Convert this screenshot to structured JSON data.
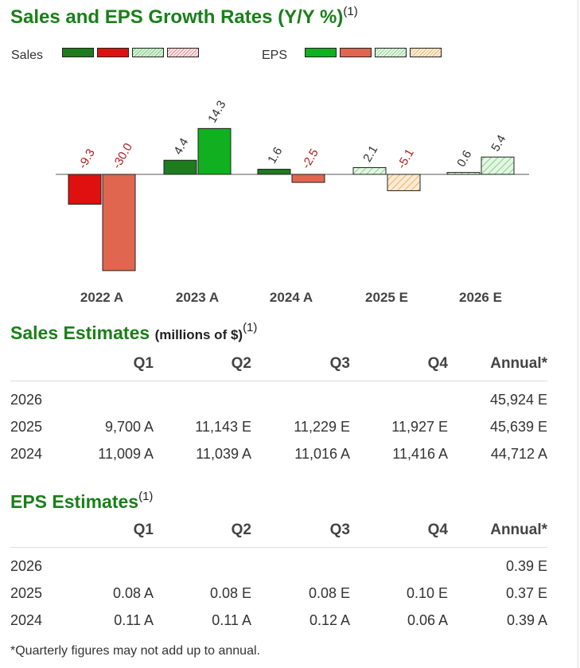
{
  "title": "Sales and EPS Growth Rates (Y/Y %)",
  "title_note": "(1)",
  "legend": {
    "sales_label": "Sales",
    "eps_label": "EPS"
  },
  "colors": {
    "sales_pos": "#1e7b1e",
    "sales_neg": "#e01010",
    "eps_pos": "#10b020",
    "eps_neg": "#e0664f",
    "neg_label": "#b02020",
    "pos_label": "#333333",
    "heading": "#1a7f1a"
  },
  "chart_data": {
    "type": "bar",
    "title": "Sales and EPS Growth Rates (Y/Y %)",
    "categories": [
      "2022 A",
      "2023 A",
      "2024 A",
      "2025 E",
      "2026 E"
    ],
    "series": [
      {
        "name": "Sales",
        "values": [
          -9.3,
          4.4,
          1.6,
          2.1,
          0.6
        ],
        "labels": [
          "-9.3",
          "4.4",
          "1.6",
          "2.1",
          "0.6"
        ],
        "estimate": [
          false,
          false,
          false,
          true,
          true
        ]
      },
      {
        "name": "EPS",
        "values": [
          -30.0,
          14.3,
          -2.5,
          -5.1,
          5.4
        ],
        "labels": [
          "-30.0",
          "14.3",
          "-2.5",
          "-5.1",
          "5.4"
        ],
        "estimate": [
          false,
          false,
          false,
          true,
          true
        ]
      }
    ],
    "xlabel": "",
    "ylabel": ""
  },
  "sales_estimates": {
    "title": "Sales Estimates",
    "subtitle": "(millions of $)",
    "note": "(1)",
    "headers": [
      "",
      "Q1",
      "Q2",
      "Q3",
      "Q4",
      "Annual*"
    ],
    "rows": [
      [
        "2026",
        "",
        "",
        "",
        "",
        "45,924 E"
      ],
      [
        "2025",
        "9,700 A",
        "11,143 E",
        "11,229 E",
        "11,927 E",
        "45,639 E"
      ],
      [
        "2024",
        "11,009 A",
        "11,039 A",
        "11,016 A",
        "11,416 A",
        "44,712 A"
      ]
    ]
  },
  "eps_estimates": {
    "title": "EPS Estimates",
    "note": "(1)",
    "headers": [
      "",
      "Q1",
      "Q2",
      "Q3",
      "Q4",
      "Annual*"
    ],
    "rows": [
      [
        "2026",
        "",
        "",
        "",
        "",
        "0.39 E"
      ],
      [
        "2025",
        "0.08 A",
        "0.08 E",
        "0.08 E",
        "0.10 E",
        "0.37 E"
      ],
      [
        "2024",
        "0.11 A",
        "0.11 A",
        "0.12 A",
        "0.06 A",
        "0.39 A"
      ]
    ]
  },
  "footnote": "*Quarterly figures may not add up to annual."
}
